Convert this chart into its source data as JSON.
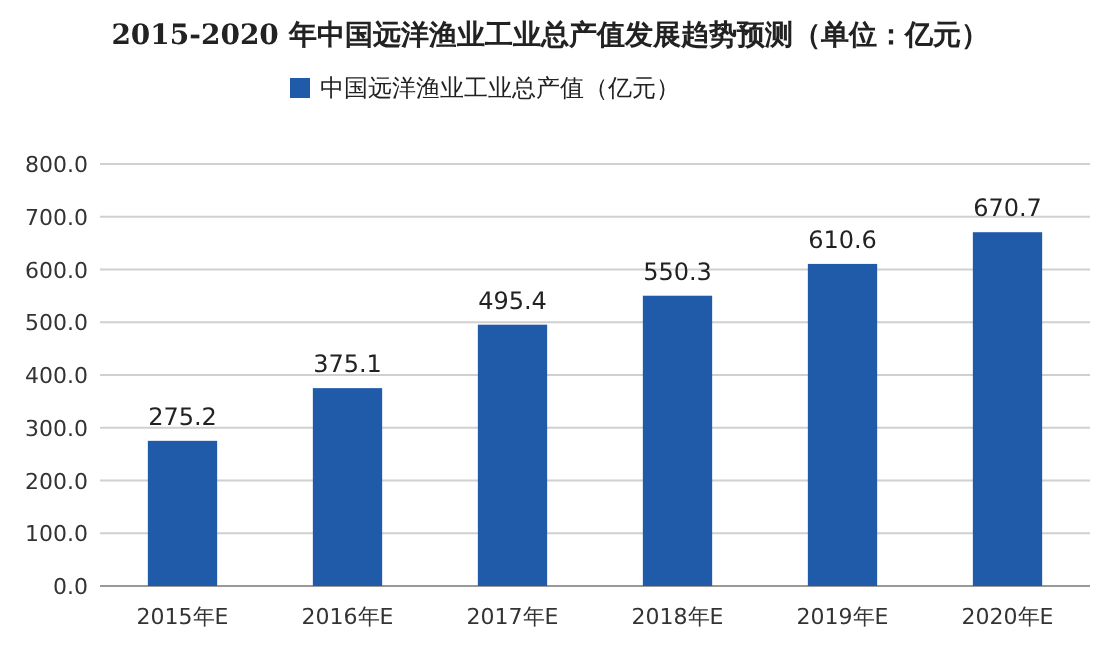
{
  "chart_data": {
    "type": "bar",
    "title": "2015-2020 年中国远洋渔业工业总产值发展趋势预测（单位：亿元）",
    "categories": [
      "2015年E",
      "2016年E",
      "2017年E",
      "2018年E",
      "2019年E",
      "2020年E"
    ],
    "series": [
      {
        "name": "中国远洋渔业工业总产值（亿元）",
        "color": "#1f5ba8",
        "values": [
          275.2,
          375.1,
          495.4,
          550.3,
          610.6,
          670.7
        ]
      }
    ],
    "ylim": [
      0,
      800
    ],
    "yticks": [
      {
        "value": 0,
        "label": "0.0"
      },
      {
        "value": 100,
        "label": "100.0"
      },
      {
        "value": 200,
        "label": "200.0"
      },
      {
        "value": 300,
        "label": "300.0"
      },
      {
        "value": 400,
        "label": "400.0"
      },
      {
        "value": 500,
        "label": "500.0"
      },
      {
        "value": 600,
        "label": "600.0"
      },
      {
        "value": 700,
        "label": "700.0"
      },
      {
        "value": 800,
        "label": "800.0"
      }
    ],
    "grid": "y",
    "legend": "top",
    "data_labels": true
  }
}
